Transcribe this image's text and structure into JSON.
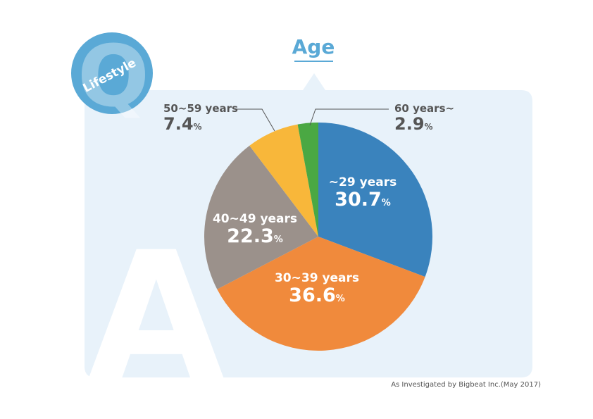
{
  "badge": {
    "letter_q": "Q",
    "label": "Lifestyle",
    "letter_a": "A"
  },
  "source_note": "As Investigated by Bigbeat Inc.(May 2017)",
  "colors": {
    "panel": "#e8f2fa",
    "badge": "#5aa9d6",
    "accent": "#5aa9d6"
  },
  "chart_data": {
    "type": "pie",
    "title": "Age",
    "pct_symbol": "%",
    "slices": [
      {
        "label": "~29 years",
        "value": 30.7,
        "display": "30.7",
        "color": "#3a83bd"
      },
      {
        "label": "30~39 years",
        "value": 36.6,
        "display": "36.6",
        "color": "#f08a3c"
      },
      {
        "label": "40~49 years",
        "value": 22.3,
        "display": "22.3",
        "color": "#9b918b"
      },
      {
        "label": "50~59 years",
        "value": 7.4,
        "display": "7.4",
        "color": "#f8b73a"
      },
      {
        "label": "60 years~",
        "value": 2.9,
        "display": "2.9",
        "color": "#4aa843"
      }
    ]
  }
}
